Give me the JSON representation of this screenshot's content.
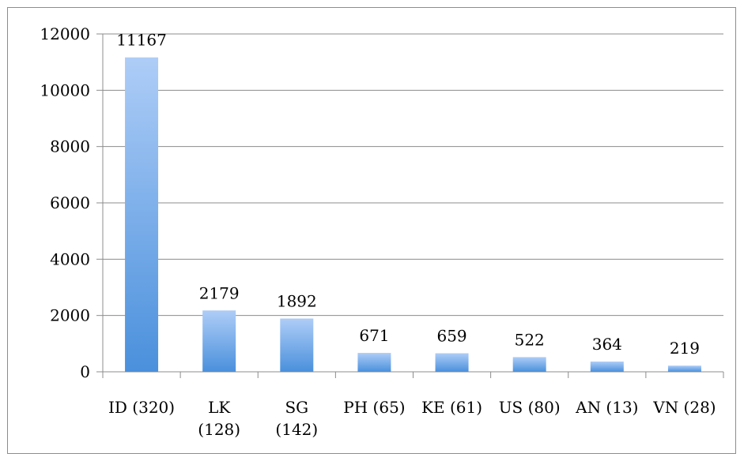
{
  "chart_data": {
    "type": "bar",
    "categories": [
      [
        "ID (320)"
      ],
      [
        "LK",
        "(128)"
      ],
      [
        "SG",
        "(142)"
      ],
      [
        "PH (65)"
      ],
      [
        "KE (61)"
      ],
      [
        "US (80)"
      ],
      [
        "AN (13)"
      ],
      [
        "VN (28)"
      ]
    ],
    "values": [
      11167,
      2179,
      1892,
      671,
      659,
      522,
      364,
      219
    ],
    "ylim": [
      0,
      12000
    ],
    "yticks": [
      0,
      2000,
      4000,
      6000,
      8000,
      10000,
      12000
    ],
    "grid": true,
    "data_labels": true,
    "colors": {
      "bar_top": "#aecdf7",
      "bar_bottom": "#4a90dc",
      "grid": "#8c8c8c"
    }
  }
}
